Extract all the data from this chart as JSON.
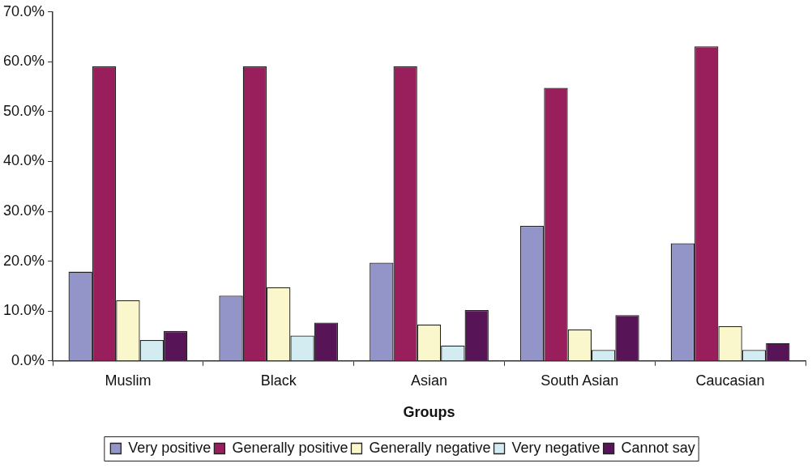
{
  "chart_data": {
    "type": "bar",
    "xlabel": "Groups",
    "categories": [
      "Muslim",
      "Black",
      "Asian",
      "South Asian",
      "Caucasian"
    ],
    "series": [
      {
        "name": "Very positive",
        "color": "#9394c7",
        "values": [
          17.9,
          13.1,
          19.7,
          27.1,
          23.6
        ]
      },
      {
        "name": "Generally positive",
        "color": "#981e5c",
        "values": [
          59.1,
          59.1,
          59.1,
          54.8,
          63.1
        ]
      },
      {
        "name": "Generally negative",
        "color": "#fbf7cc",
        "values": [
          12.2,
          14.8,
          7.3,
          6.3,
          7.0
        ]
      },
      {
        "name": "Very negative",
        "color": "#d2ecf1",
        "values": [
          4.2,
          5.1,
          3.1,
          2.2,
          2.2
        ]
      },
      {
        "name": "Cannot say",
        "color": "#571558",
        "values": [
          6.0,
          7.7,
          10.2,
          9.2,
          3.6
        ]
      }
    ],
    "ylim": [
      0,
      70
    ],
    "yticks": [
      {
        "value": 0,
        "label": "0.0%"
      },
      {
        "value": 10,
        "label": "10.0%"
      },
      {
        "value": 20,
        "label": "20.0%"
      },
      {
        "value": 30,
        "label": "30.0%"
      },
      {
        "value": 40,
        "label": "40.0%"
      },
      {
        "value": 50,
        "label": "50.0%"
      },
      {
        "value": 60,
        "label": "60.0%"
      },
      {
        "value": 70,
        "label": "70.0%"
      }
    ],
    "grid": false,
    "legend": "bottom"
  }
}
